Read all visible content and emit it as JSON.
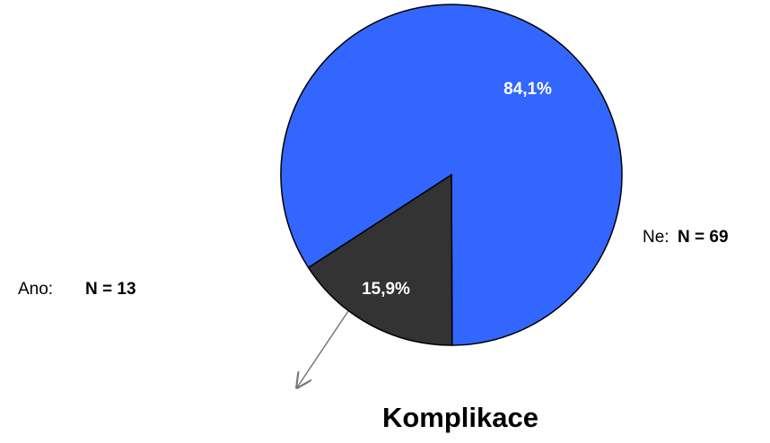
{
  "chart_data": {
    "type": "pie",
    "title": "Komplikace",
    "categories": [
      "Ne:",
      "Ano:"
    ],
    "values": [
      84.1,
      15.9
    ],
    "value_labels": [
      "84,1%",
      "15,9%"
    ],
    "counts": [
      69,
      13
    ],
    "count_labels": [
      "N = 69",
      "N = 13"
    ],
    "colors": [
      "#3366ff",
      "#333333"
    ]
  }
}
